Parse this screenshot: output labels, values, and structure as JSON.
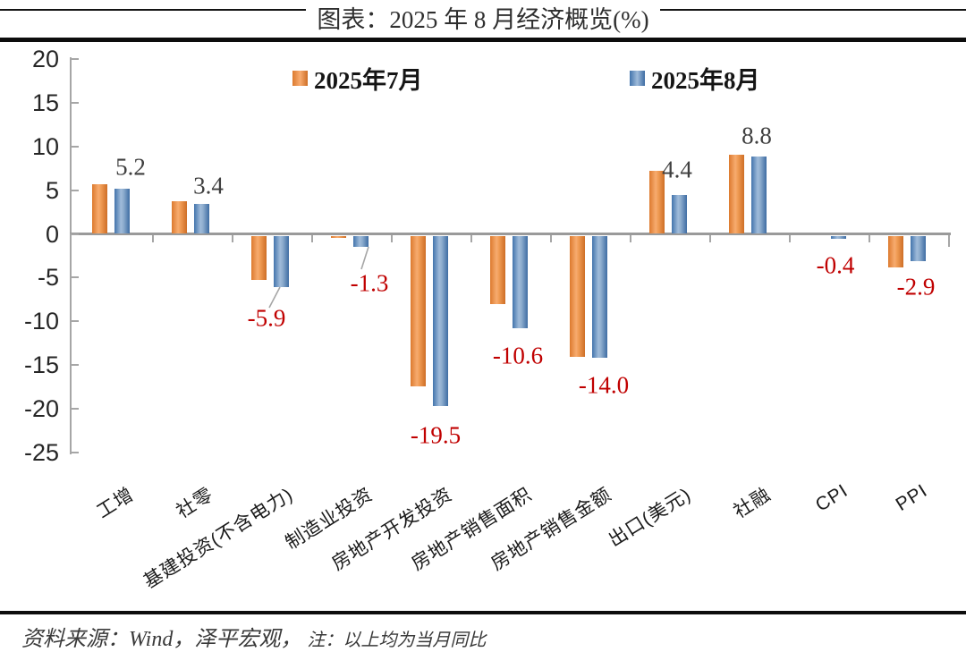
{
  "title": "图表：2025 年 8 月经济概览(%)",
  "legend": [
    {
      "label": "2025年7月",
      "color": "#ED9853"
    },
    {
      "label": "2025年8月",
      "color": "#6F96C5"
    }
  ],
  "chart_data": {
    "type": "bar",
    "title": "图表：2025 年 8 月经济概览(%)",
    "unit": "%",
    "categories": [
      "工增",
      "社零",
      "基建投资(不含电力)",
      "制造业投资",
      "房地产开发投资",
      "房地产销售面积",
      "房地产销售金额",
      "出口(美元)",
      "社融",
      "CPI",
      "PPI"
    ],
    "series": [
      {
        "name": "2025年7月",
        "color": "#ED9853",
        "values": [
          5.7,
          3.7,
          -5.1,
          -0.3,
          -17.2,
          -7.8,
          -13.9,
          7.2,
          9.0,
          0.0,
          -3.6
        ]
      },
      {
        "name": "2025年8月",
        "color": "#6F96C5",
        "values": [
          5.2,
          3.4,
          -5.9,
          -1.3,
          -19.5,
          -10.6,
          -14.0,
          4.4,
          8.8,
          -0.4,
          -2.9
        ]
      }
    ],
    "data_labels": [
      "5.2",
      "3.4",
      "-5.9",
      "-1.3",
      "-19.5",
      "-10.6",
      "-14.0",
      "4.4",
      "8.8",
      "-0.4",
      "-2.9"
    ],
    "labeled_series": "2025年8月",
    "yticks": [
      20,
      15,
      10,
      5,
      0,
      -5,
      -10,
      -15,
      -20,
      -25
    ],
    "ylim": [
      -25,
      20
    ],
    "grid": false,
    "legend_position": "top",
    "label_colors": {
      "positive": "#3F3F3F",
      "negative": "#C00000"
    }
  },
  "footer": {
    "source": "资料来源：Wind，泽平宏观，",
    "note": "注：以上均为当月同比"
  }
}
